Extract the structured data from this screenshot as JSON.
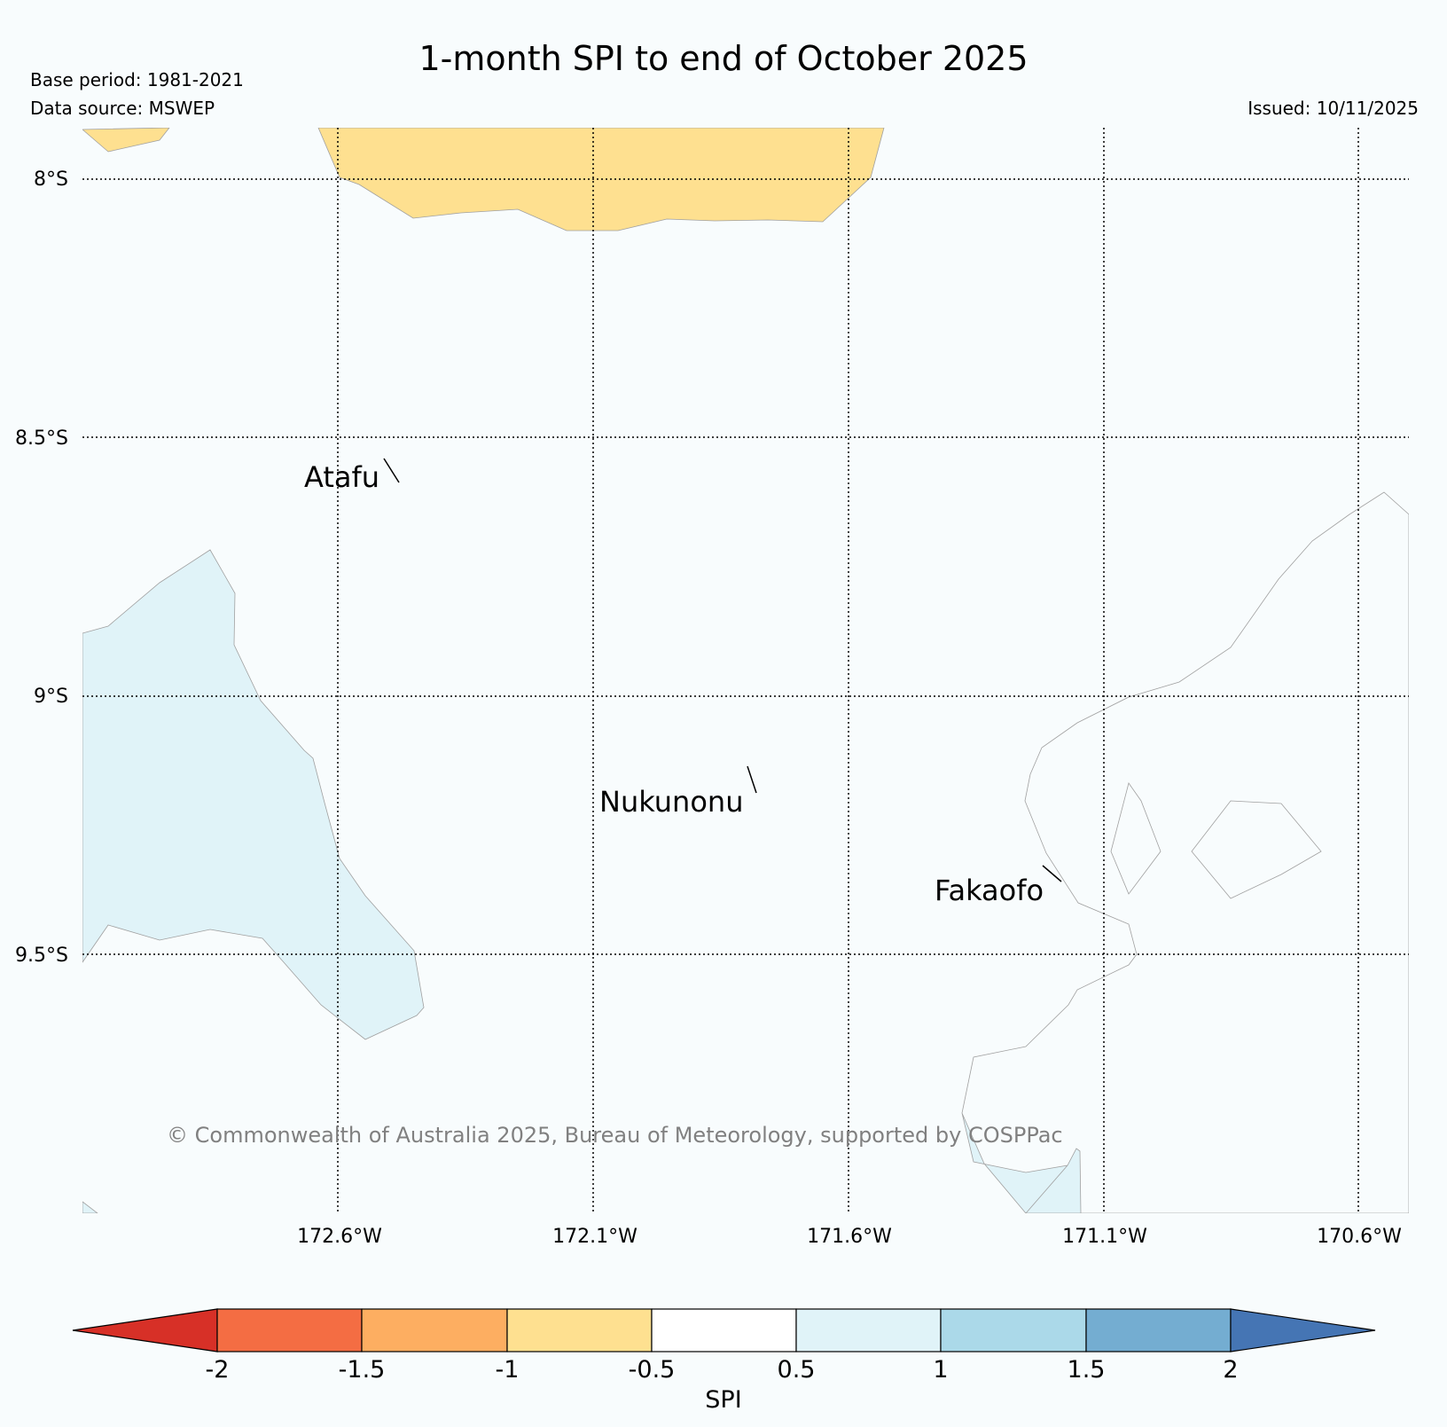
{
  "title": "1-month SPI to end of October 2025",
  "meta": {
    "base_period": "Base period: 1981-2021",
    "data_source": "Data source: MSWEP",
    "issued": "Issued: 10/11/2025"
  },
  "map": {
    "lat_labels": [
      "8°S",
      "8.5°S",
      "9°S",
      "9.5°S"
    ],
    "lon_labels": [
      "172.6°W",
      "172.1°W",
      "171.6°W",
      "171.1°W",
      "170.6°W"
    ],
    "places": {
      "atafu": "Atafu",
      "nukunonu": "Nukunonu",
      "fakaofo": "Fakaofo"
    },
    "copyright": "© Commonwealth of Australia 2025, Bureau of Meteorology, supported by COSPPac",
    "fill_colors": {
      "dry_-1_-0.5": "#fee090",
      "wet_0.5_1": "#e0f3f8",
      "normal": "#f8fcfd"
    }
  },
  "colorbar": {
    "label": "SPI",
    "ticks": [
      "-2",
      "-1.5",
      "-1",
      "-0.5",
      "0.5",
      "1",
      "1.5",
      "2"
    ],
    "colors": {
      "below_-2": "#d73027",
      "-2_-1.5": "#f46d43",
      "-1.5_-1": "#fdae61",
      "-1_-0.5": "#fee090",
      "-0.5_0.5": "#ffffff",
      "0.5_1": "#e0f3f8",
      "1_1.5": "#abd9e9",
      "1.5_2": "#74add1",
      "above_2": "#4575b4"
    }
  }
}
